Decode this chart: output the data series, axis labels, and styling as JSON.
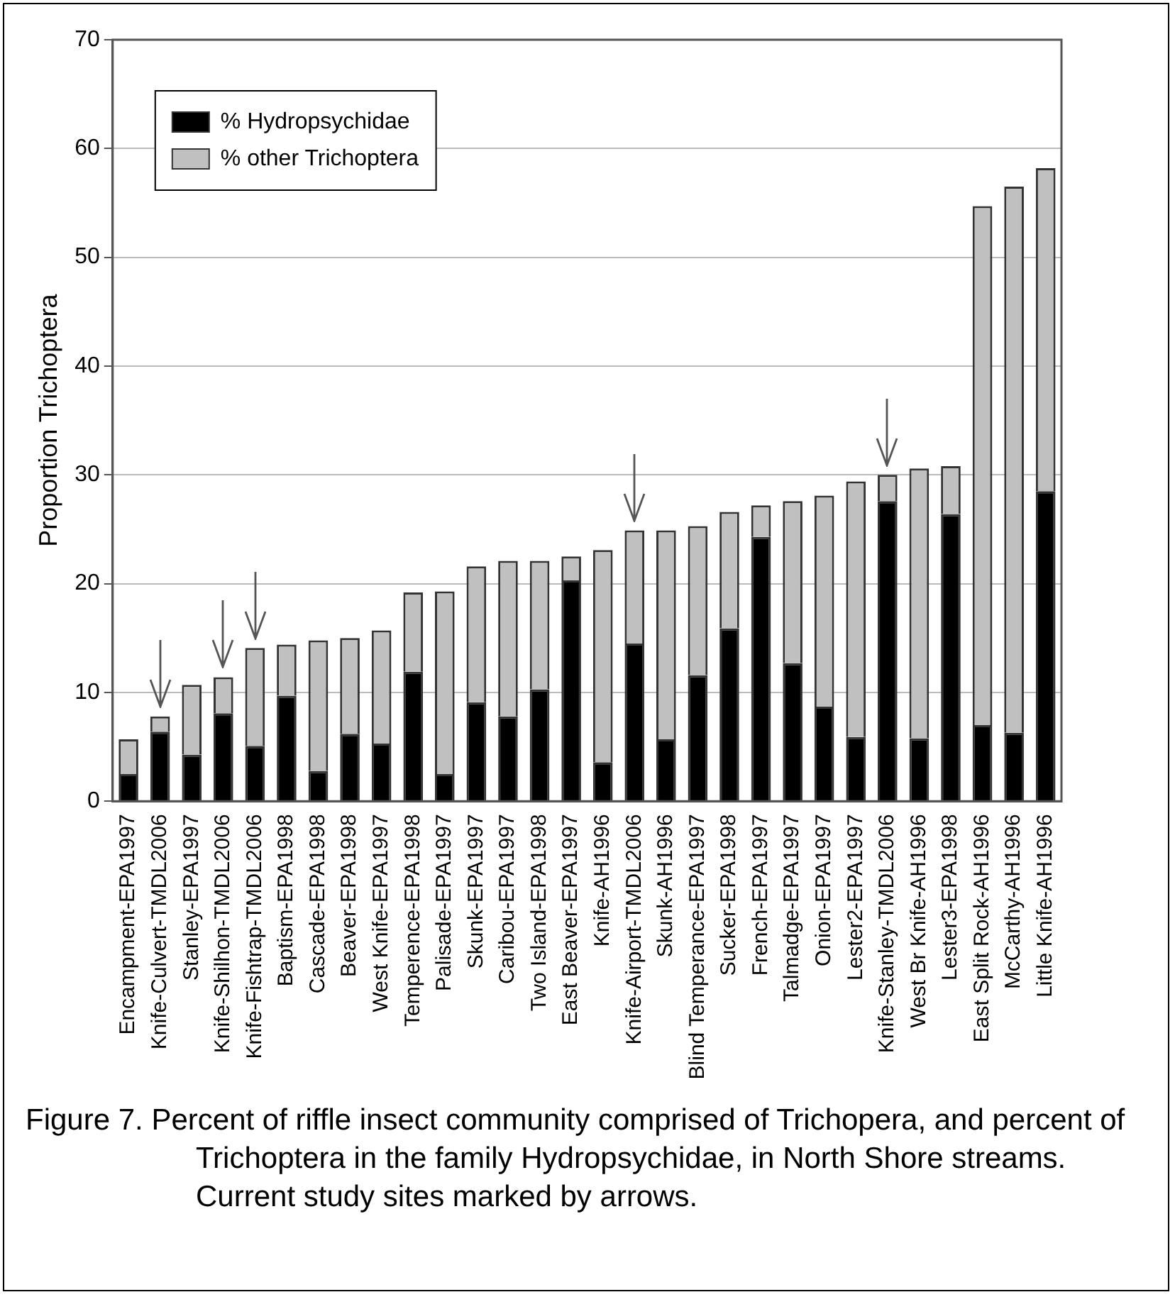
{
  "chart_data": {
    "type": "bar",
    "stacked": true,
    "ylabel": "Proportion Trichoptera",
    "categories": [
      "Encampment-EPA1997",
      "Knife-Culvert-TMDL2006",
      "Stanley-EPA1997",
      "Knife-Shilhon-TMDL2006",
      "Knife-Fishtrap-TMDL2006",
      "Baptism-EPA1998",
      "Cascade-EPA1998",
      "Beaver-EPA1998",
      "West Knife-EPA1997",
      "Temperence-EPA1998",
      "Palisade-EPA1997",
      "Skunk-EPA1997",
      "Caribou-EPA1997",
      "Two Island-EPA1998",
      "East Beaver-EPA1997",
      "Knife-AH1996",
      "Knife-Airport-TMDL2006",
      "Skunk-AH1996",
      "Blind Temperance-EPA1997",
      "Sucker-EPA1998",
      "French-EPA1997",
      "Talmadge-EPA1997",
      "Onion-EPA1997",
      "Lester2-EPA1997",
      "Knife-Stanley-TMDL2006",
      "West Br Knife-AH1996",
      "Lester3-EPA1998",
      "East Split Rock-AH1996",
      "McCarthy-AH1996",
      "Little Knife-AH1996"
    ],
    "series": [
      {
        "name": "% Hydropsychidae",
        "color": "#000000",
        "values": [
          2.5,
          6.4,
          4.3,
          8.1,
          5.1,
          9.7,
          2.8,
          6.2,
          5.3,
          11.9,
          2.5,
          9.1,
          7.8,
          10.3,
          20.3,
          3.6,
          14.5,
          5.7,
          11.6,
          15.9,
          24.3,
          12.7,
          8.7,
          5.9,
          27.6,
          5.8,
          26.4,
          7.0,
          6.3,
          28.5
        ]
      },
      {
        "name": "% other Trichoptera",
        "color": "#c0c0c0",
        "values": [
          3.2,
          1.4,
          6.4,
          3.3,
          9.0,
          4.7,
          12.0,
          8.8,
          10.4,
          7.3,
          16.8,
          12.5,
          14.3,
          11.8,
          2.2,
          19.5,
          10.4,
          19.2,
          13.7,
          10.7,
          2.9,
          14.9,
          19.4,
          23.5,
          2.4,
          24.8,
          4.4,
          47.7,
          50.2,
          29.7
        ]
      }
    ],
    "ylim": [
      0,
      70
    ],
    "yticks": [
      0,
      10,
      20,
      30,
      40,
      50,
      60,
      70
    ],
    "grid": "y",
    "legend": "top left",
    "annotations": [
      "Figure 7. Percent of riffle insect community comprised of Trichopera, and percent of Trichoptera in the family Hydropsychidae, in North Shore streams. Current study sites marked by arrows."
    ]
  }
}
